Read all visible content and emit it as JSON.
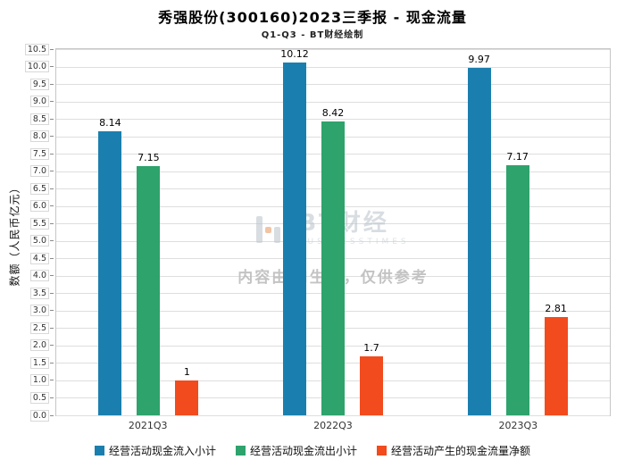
{
  "title": "秀强股份(300160)2023三季报 - 现金流量",
  "subtitle": "Q1-Q3 - BT财经绘制",
  "ylabel": "数额（人民币亿元）",
  "watermark": {
    "logo_text": "BT财经",
    "logo_sub": "BUSINESSTIMES",
    "disclaimer": "内容由AI生成，仅供参考"
  },
  "colors": {
    "inflow": "#1a7fae",
    "outflow": "#2ea36c",
    "net": "#f24b1d",
    "grid": "#dedede"
  },
  "chart_data": {
    "type": "bar",
    "categories": [
      "2021Q3",
      "2022Q3",
      "2023Q3"
    ],
    "series": [
      {
        "name": "经营活动现金流入小计",
        "color": "#1a7fae",
        "values": [
          8.14,
          10.12,
          9.97
        ]
      },
      {
        "name": "经营活动现金流出小计",
        "color": "#2ea36c",
        "values": [
          7.15,
          8.42,
          7.17
        ]
      },
      {
        "name": "经营活动产生的现金流量净额",
        "color": "#f24b1d",
        "values": [
          1,
          1.7,
          2.81
        ]
      }
    ],
    "title": "秀强股份(300160)2023三季报 - 现金流量",
    "xlabel": "",
    "ylabel": "数额（人民币亿元）",
    "ylim": [
      0,
      10.5
    ],
    "ytick_step": 0.5,
    "grid": true,
    "legend_position": "bottom"
  }
}
